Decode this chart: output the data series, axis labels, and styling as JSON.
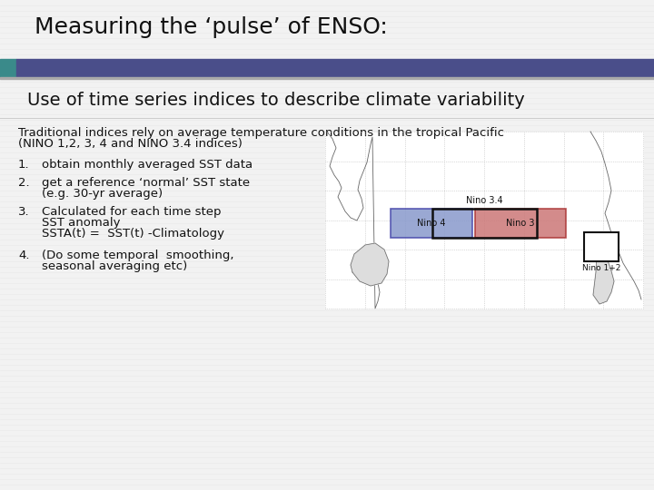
{
  "title": "Measuring the ‘pulse’ of ENSO:",
  "subtitle": "Use of time series indices to describe climate variability",
  "header_bar_color": "#4a4e8a",
  "header_accent_color": "#3a8a8a",
  "header_line_color": "#aaaaaa",
  "slide_bg": "#f2f2f2",
  "body_text_line1": "Traditional indices rely on average temperature conditions in the tropical Pacific",
  "body_text_line2": "(NINO 1,2, 3, 4 and NINO 3.4 indices)",
  "list_items": [
    "obtain monthly averaged SST data",
    "get a reference ‘normal’ SST state",
    "(e.g. 30-yr average)",
    "Calculated for each time step",
    "SST anomaly",
    "SSTA(t) =  SST(t) -Climatology",
    "(Do some temporal  smoothing,",
    "seasonal averaging etc)"
  ],
  "title_fontsize": 18,
  "subtitle_fontsize": 14,
  "body_fontsize": 9.5,
  "list_fontsize": 9.5
}
